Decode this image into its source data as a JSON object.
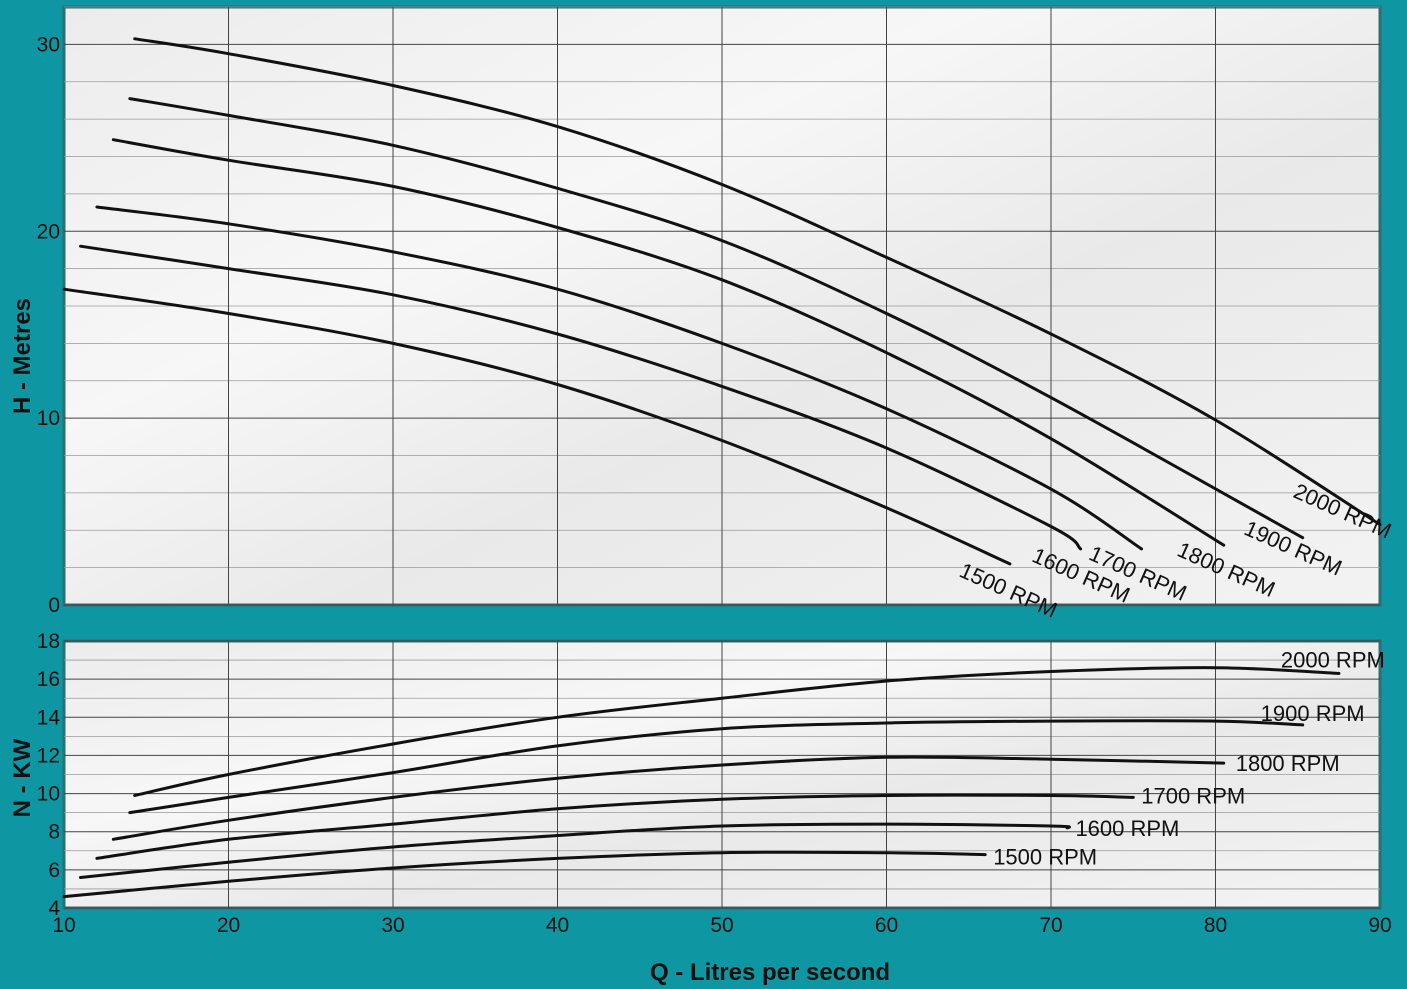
{
  "chart_data": [
    {
      "id": "head",
      "type": "line",
      "ylabel": "H - Metres",
      "xlim": [
        10,
        90
      ],
      "ylim": [
        0,
        32
      ],
      "xticks": [],
      "yticks": [
        {
          "v": 0,
          "label": "0"
        },
        {
          "v": 10,
          "label": "10"
        },
        {
          "v": 20,
          "label": "20"
        },
        {
          "v": 30,
          "label": "30"
        }
      ],
      "grid": true,
      "series": [
        {
          "name": "1500 RPM",
          "x": [
            10,
            20,
            30,
            40,
            50,
            60,
            67.5
          ],
          "y": [
            16.9,
            15.6,
            14.0,
            11.8,
            8.8,
            5.2,
            2.2
          ]
        },
        {
          "name": "1600 RPM",
          "x": [
            11,
            20,
            30,
            40,
            50,
            60,
            70,
            71.8
          ],
          "y": [
            19.2,
            18.0,
            16.6,
            14.5,
            11.7,
            8.4,
            4.2,
            3.0
          ]
        },
        {
          "name": "1700 RPM",
          "x": [
            12,
            20,
            30,
            40,
            50,
            60,
            70,
            75.5
          ],
          "y": [
            21.3,
            20.4,
            18.9,
            16.9,
            14.0,
            10.5,
            6.2,
            3.0
          ]
        },
        {
          "name": "1800 RPM",
          "x": [
            13,
            20,
            30,
            40,
            50,
            60,
            70,
            80.5
          ],
          "y": [
            24.9,
            23.8,
            22.4,
            20.2,
            17.4,
            13.5,
            8.9,
            3.2
          ]
        },
        {
          "name": "1900 RPM",
          "x": [
            14,
            20,
            30,
            40,
            50,
            60,
            70,
            85.3
          ],
          "y": [
            27.1,
            26.2,
            24.6,
            22.3,
            19.5,
            15.6,
            11.1,
            3.6
          ]
        },
        {
          "name": "2000 RPM",
          "x": [
            14.3,
            20,
            30,
            40,
            50,
            60,
            70,
            80,
            90
          ],
          "y": [
            30.3,
            29.5,
            27.8,
            25.6,
            22.5,
            18.6,
            14.5,
            9.9,
            4.3
          ]
        }
      ]
    },
    {
      "id": "power",
      "type": "line",
      "xlabel": "Q - Litres per second",
      "ylabel": "N - KW",
      "xlim": [
        10,
        90
      ],
      "ylim": [
        4,
        18
      ],
      "xticks": [
        {
          "v": 10,
          "label": "10"
        },
        {
          "v": 20,
          "label": "20"
        },
        {
          "v": 30,
          "label": "30"
        },
        {
          "v": 40,
          "label": "40"
        },
        {
          "v": 50,
          "label": "50"
        },
        {
          "v": 60,
          "label": "60"
        },
        {
          "v": 70,
          "label": "70"
        },
        {
          "v": 80,
          "label": "80"
        },
        {
          "v": 90,
          "label": "90"
        }
      ],
      "yticks": [
        {
          "v": 4,
          "label": "4"
        },
        {
          "v": 6,
          "label": "6"
        },
        {
          "v": 8,
          "label": "8"
        },
        {
          "v": 10,
          "label": "10"
        },
        {
          "v": 12,
          "label": "12"
        },
        {
          "v": 14,
          "label": "14"
        },
        {
          "v": 16,
          "label": "16"
        },
        {
          "v": 18,
          "label": "18"
        }
      ],
      "grid": true,
      "series": [
        {
          "name": "1500 RPM",
          "x": [
            10,
            20,
            30,
            40,
            50,
            60,
            66
          ],
          "y": [
            4.6,
            5.4,
            6.1,
            6.6,
            6.9,
            6.9,
            6.8
          ]
        },
        {
          "name": "1600 RPM",
          "x": [
            11,
            20,
            30,
            40,
            50,
            60,
            70,
            71
          ],
          "y": [
            5.6,
            6.4,
            7.2,
            7.8,
            8.3,
            8.4,
            8.3,
            8.2
          ]
        },
        {
          "name": "1700 RPM",
          "x": [
            12,
            20,
            30,
            40,
            50,
            60,
            70,
            75
          ],
          "y": [
            6.6,
            7.6,
            8.4,
            9.2,
            9.7,
            9.9,
            9.9,
            9.8
          ]
        },
        {
          "name": "1800 RPM",
          "x": [
            13,
            20,
            30,
            40,
            50,
            60,
            70,
            80.5
          ],
          "y": [
            7.6,
            8.6,
            9.8,
            10.8,
            11.5,
            11.9,
            11.8,
            11.6
          ]
        },
        {
          "name": "1900 RPM",
          "x": [
            14,
            20,
            30,
            40,
            50,
            60,
            70,
            80,
            85.3
          ],
          "y": [
            9.0,
            9.8,
            11.1,
            12.5,
            13.4,
            13.7,
            13.8,
            13.8,
            13.6
          ]
        },
        {
          "name": "2000 RPM",
          "x": [
            14.3,
            20,
            30,
            40,
            50,
            60,
            70,
            80,
            87.5
          ],
          "y": [
            9.9,
            11.0,
            12.6,
            14.0,
            15.0,
            15.9,
            16.4,
            16.6,
            16.3
          ]
        }
      ]
    }
  ]
}
